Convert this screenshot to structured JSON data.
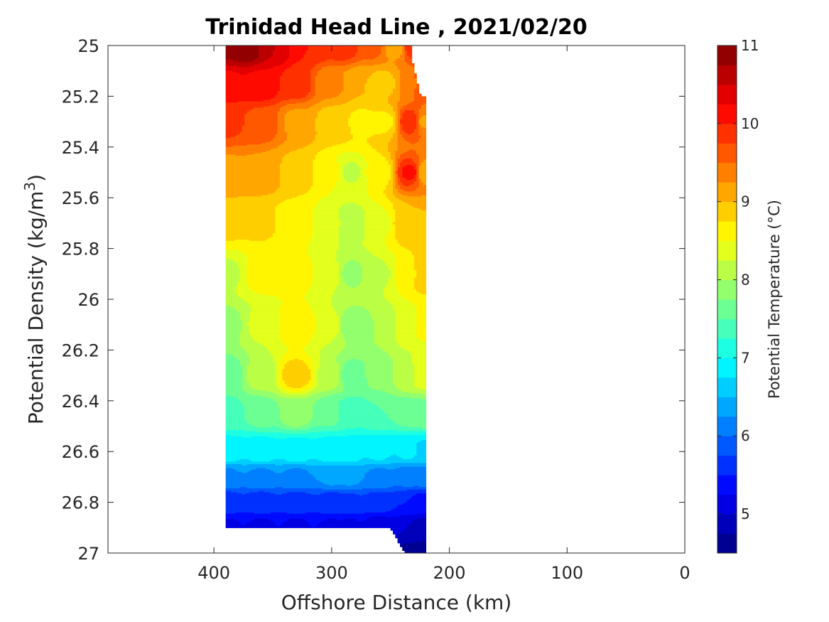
{
  "chart_data": {
    "type": "heatmap",
    "title": "Trinidad Head Line , 2021/02/20",
    "xlabel": "Offshore Distance (km)",
    "ylabel_text": "Potential Density (kg/m",
    "ylabel_sup": "3",
    "ylabel_close": ")",
    "colorbar_label": "Potential Temperature (°C)",
    "xlim": [
      490,
      0
    ],
    "x_reversed": true,
    "ylim": [
      25,
      27
    ],
    "y_reversed": true,
    "x_ticks": [
      400,
      300,
      200,
      100,
      0
    ],
    "x_tick_labels": [
      "400",
      "300",
      "200",
      "100",
      "0"
    ],
    "y_ticks": [
      25,
      25.2,
      25.4,
      25.6,
      25.8,
      26,
      26.2,
      26.4,
      26.6,
      26.8,
      27
    ],
    "y_tick_labels": [
      "25",
      "25.2",
      "25.4",
      "25.6",
      "25.8",
      "26",
      "26.2",
      "26.4",
      "26.6",
      "26.8",
      "27"
    ],
    "colorbar": {
      "range": [
        4.5,
        11
      ],
      "step": 0.25,
      "ticks": [
        5,
        6,
        7,
        8,
        9,
        10,
        11
      ],
      "tick_labels": [
        "5",
        "6",
        "7",
        "8",
        "9",
        "10",
        "11"
      ],
      "colormap": "jet"
    },
    "data_region": {
      "x": [
        390,
        220
      ],
      "y": [
        25,
        26.9
      ]
    },
    "contour_levels": [
      {
        "temp": 10.5,
        "color": "#b40000",
        "band": [
          [
            390,
            25
          ],
          [
            350,
            25
          ],
          [
            360,
            25.05
          ],
          [
            390,
            25.05
          ]
        ]
      },
      {
        "temp": 10.0,
        "color": "#ff1a00",
        "band": [
          [
            390,
            25
          ],
          [
            240,
            25
          ],
          [
            240,
            25.05
          ],
          [
            300,
            25.1
          ],
          [
            330,
            25.2
          ],
          [
            360,
            25.25
          ],
          [
            390,
            25.3
          ]
        ]
      },
      {
        "temp": 9.5,
        "color": "#ff6000",
        "band": [
          [
            390,
            25
          ],
          [
            240,
            25
          ],
          [
            250,
            25.2
          ],
          [
            300,
            25.25
          ],
          [
            330,
            25.35
          ],
          [
            360,
            25.4
          ],
          [
            390,
            25.45
          ]
        ]
      },
      {
        "temp": 9.0,
        "color": "#ffa000",
        "band": [
          [
            390,
            25
          ],
          [
            240,
            25
          ],
          [
            260,
            25.3
          ],
          [
            310,
            25.45
          ],
          [
            340,
            25.6
          ],
          [
            370,
            25.6
          ],
          [
            390,
            25.65
          ]
        ]
      },
      {
        "temp": 8.5,
        "color": "#ffe000",
        "band": [
          [
            390,
            25
          ],
          [
            240,
            25
          ],
          [
            290,
            25.5
          ],
          [
            340,
            25.8
          ],
          [
            360,
            25.85
          ],
          [
            390,
            25.8
          ]
        ]
      },
      {
        "temp": 8.0,
        "color": "#c0ff40",
        "band": [
          [
            390,
            25.8
          ],
          [
            360,
            26.1
          ],
          [
            300,
            26.2
          ],
          [
            250,
            26.35
          ],
          [
            220,
            26.4
          ]
        ]
      },
      {
        "temp": 7.5,
        "color": "#80ff80",
        "band": [
          [
            390,
            26.1
          ],
          [
            360,
            26.4
          ],
          [
            300,
            26.45
          ],
          [
            250,
            26.5
          ],
          [
            220,
            26.5
          ]
        ]
      },
      {
        "temp": 7.0,
        "color": "#40ffc0",
        "band": [
          [
            390,
            26.4
          ],
          [
            350,
            26.55
          ],
          [
            300,
            26.55
          ],
          [
            220,
            26.6
          ]
        ]
      },
      {
        "temp": 6.5,
        "color": "#00e0ff",
        "band": [
          [
            390,
            26.6
          ],
          [
            220,
            26.65
          ]
        ]
      },
      {
        "temp": 6.0,
        "color": "#00a0ff",
        "band": [
          [
            390,
            26.7
          ],
          [
            220,
            26.75
          ]
        ]
      },
      {
        "temp": 5.5,
        "color": "#0040ff",
        "band": [
          [
            390,
            26.8
          ],
          [
            220,
            26.85
          ]
        ]
      },
      {
        "temp": 5.0,
        "color": "#0000d0",
        "band": [
          [
            250,
            26.9
          ],
          [
            220,
            27
          ]
        ]
      }
    ]
  }
}
